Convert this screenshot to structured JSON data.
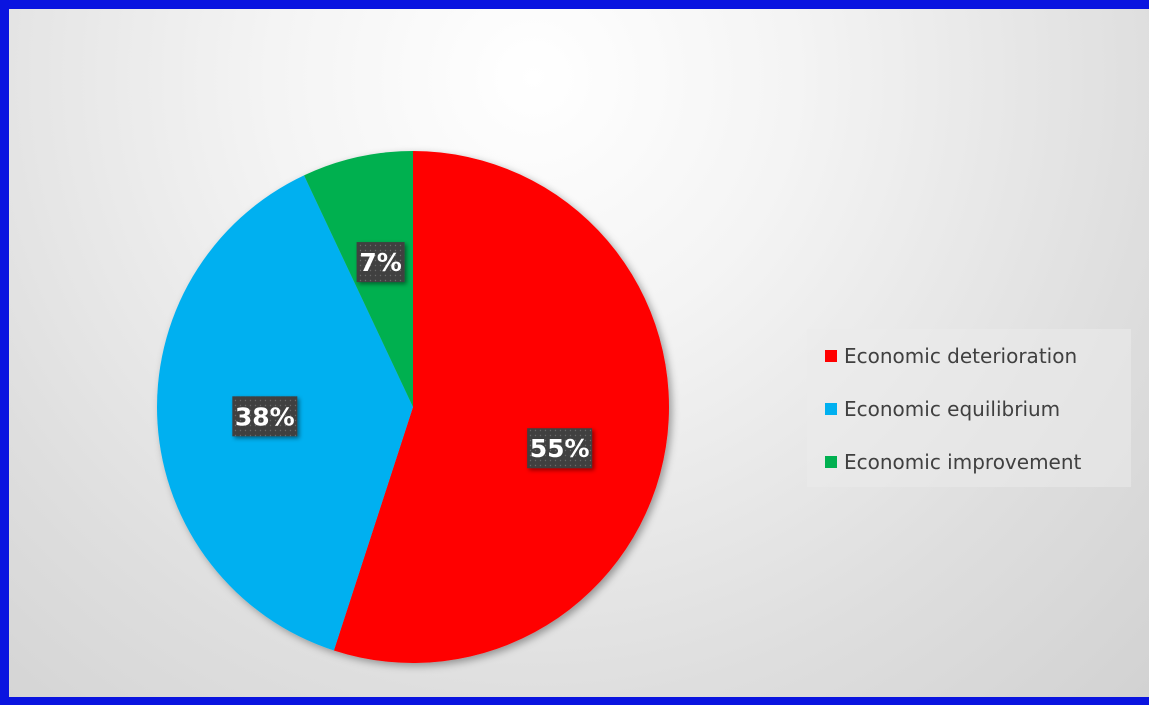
{
  "chart_data": {
    "type": "pie",
    "title": "",
    "series": [
      {
        "categories": [
          "Economic deterioration",
          "Economic equilibrium",
          "Economic improvement"
        ],
        "values": [
          55,
          38,
          7
        ],
        "labels": [
          "55%",
          "38%",
          "7%"
        ],
        "colors": [
          "#ff0000",
          "#00b0f0",
          "#00b050"
        ]
      }
    ],
    "legend": {
      "position": "right",
      "entries": [
        "Economic deterioration",
        "Economic equilibrium",
        "Economic improvement"
      ]
    },
    "start_angle_deg": 0,
    "direction": "clockwise"
  },
  "colors": {
    "frame_border": "#0a14e0",
    "label_box": "#3f3f3f"
  }
}
